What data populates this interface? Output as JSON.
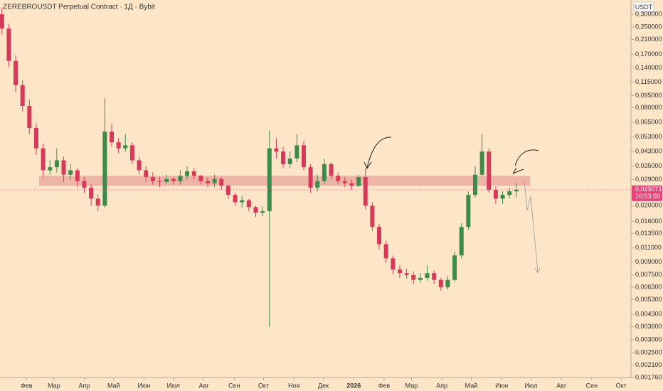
{
  "chart_data": {
    "type": "candlestick",
    "title": "ZEREBROUSDT Perpetual Contract · 1Д · Bybit",
    "y_unit": "USDT",
    "x": [
      -25,
      -18,
      -11,
      -4,
      3,
      10,
      17,
      24,
      31,
      38,
      45,
      52,
      59,
      66,
      73,
      80,
      87,
      94,
      101,
      108,
      115,
      122,
      129,
      136,
      143,
      150,
      157,
      164,
      171,
      178,
      185,
      192,
      199,
      206,
      213,
      220,
      227,
      234,
      241,
      248,
      255,
      262,
      269,
      276,
      283,
      290,
      297,
      304,
      311,
      318,
      325,
      332,
      339,
      346,
      353,
      360,
      367,
      374,
      381,
      388,
      395,
      402,
      409,
      416,
      423,
      430,
      437,
      444,
      451,
      458,
      465,
      472,
      479,
      486,
      493,
      500
    ],
    "open": [
      0.3,
      0.245,
      0.155,
      0.11,
      0.082,
      0.06,
      0.045,
      0.033,
      0.0345,
      0.038,
      0.031,
      0.033,
      0.0283,
      0.0258,
      0.0221,
      0.02,
      0.057,
      0.049,
      0.045,
      0.047,
      0.038,
      0.033,
      0.03,
      0.0283,
      0.028,
      0.0292,
      0.0283,
      0.0305,
      0.0325,
      0.0305,
      0.0283,
      0.0275,
      0.0292,
      0.0265,
      0.0233,
      0.021,
      0.0216,
      0.0196,
      0.0181,
      0.0185,
      0.045,
      0.043,
      0.036,
      0.039,
      0.047,
      0.0345,
      0.0258,
      0.0283,
      0.036,
      0.0305,
      0.0283,
      0.0275,
      0.0265,
      0.03,
      0.02,
      0.0148,
      0.0116,
      0.0095,
      0.0081,
      0.0077,
      0.0075,
      0.007,
      0.0072,
      0.0077,
      0.007,
      0.0063,
      0.007,
      0.0099,
      0.0148,
      0.0233,
      0.031,
      0.043,
      0.025,
      0.0221,
      0.0233,
      0.0245
    ],
    "high": [
      0.33,
      0.262,
      0.168,
      0.118,
      0.09,
      0.064,
      0.048,
      0.038,
      0.045,
      0.04,
      0.036,
      0.034,
      0.03,
      0.027,
      0.0235,
      0.092,
      0.064,
      0.052,
      0.055,
      0.049,
      0.04,
      0.035,
      0.032,
      0.03,
      0.031,
      0.03,
      0.033,
      0.035,
      0.034,
      0.031,
      0.03,
      0.031,
      0.03,
      0.027,
      0.024,
      0.023,
      0.022,
      0.02,
      0.0198,
      0.058,
      0.052,
      0.046,
      0.043,
      0.055,
      0.05,
      0.036,
      0.031,
      0.039,
      0.037,
      0.032,
      0.03,
      0.029,
      0.031,
      0.034,
      0.021,
      0.0155,
      0.0122,
      0.0099,
      0.0086,
      0.0082,
      0.0079,
      0.0077,
      0.0086,
      0.008,
      0.0072,
      0.0074,
      0.0104,
      0.0156,
      0.0245,
      0.035,
      0.055,
      0.045,
      0.0262,
      0.0245,
      0.0258,
      0.0275
    ],
    "low": [
      0.225,
      0.142,
      0.1,
      0.076,
      0.055,
      0.041,
      0.03,
      0.031,
      0.032,
      0.028,
      0.029,
      0.026,
      0.024,
      0.02,
      0.0185,
      0.0195,
      0.046,
      0.042,
      0.043,
      0.036,
      0.031,
      0.028,
      0.027,
      0.026,
      0.027,
      0.027,
      0.027,
      0.029,
      0.029,
      0.027,
      0.026,
      0.026,
      0.025,
      0.022,
      0.02,
      0.0195,
      0.0185,
      0.017,
      0.0172,
      0.0036,
      0.039,
      0.034,
      0.034,
      0.037,
      0.033,
      0.024,
      0.0245,
      0.027,
      0.029,
      0.027,
      0.026,
      0.025,
      0.026,
      0.019,
      0.014,
      0.0108,
      0.0089,
      0.0076,
      0.0072,
      0.0071,
      0.0066,
      0.0067,
      0.0069,
      0.0066,
      0.006,
      0.0061,
      0.0068,
      0.0095,
      0.0142,
      0.0225,
      0.03,
      0.024,
      0.0205,
      0.0205,
      0.0222,
      0.0225
    ],
    "close": [
      0.245,
      0.155,
      0.11,
      0.082,
      0.06,
      0.045,
      0.033,
      0.0345,
      0.038,
      0.031,
      0.033,
      0.0283,
      0.0258,
      0.0221,
      0.02,
      0.057,
      0.049,
      0.045,
      0.047,
      0.038,
      0.033,
      0.03,
      0.0283,
      0.028,
      0.0292,
      0.0283,
      0.0305,
      0.0325,
      0.0305,
      0.0283,
      0.0275,
      0.0292,
      0.0265,
      0.0233,
      0.021,
      0.0216,
      0.0196,
      0.0181,
      0.0185,
      0.045,
      0.043,
      0.036,
      0.039,
      0.047,
      0.0345,
      0.0258,
      0.0283,
      0.036,
      0.0305,
      0.0283,
      0.0275,
      0.0265,
      0.03,
      0.02,
      0.0148,
      0.0116,
      0.0095,
      0.0081,
      0.0077,
      0.0075,
      0.007,
      0.0072,
      0.0077,
      0.007,
      0.0063,
      0.007,
      0.0099,
      0.0148,
      0.0233,
      0.031,
      0.043,
      0.025,
      0.0221,
      0.0233,
      0.0245,
      0.025071
    ],
    "up_color": "#3d8b4a",
    "down_color": "#d63a5a",
    "xlim": [
      -27,
      617
    ],
    "xticks": [
      {
        "value": 0,
        "label": "Фев"
      },
      {
        "value": 28,
        "label": "Мар"
      },
      {
        "value": 59,
        "label": "Апр"
      },
      {
        "value": 89,
        "label": "Май"
      },
      {
        "value": 120,
        "label": "Июн"
      },
      {
        "value": 150,
        "label": "Июл"
      },
      {
        "value": 181,
        "label": "Авг"
      },
      {
        "value": 212,
        "label": "Сен"
      },
      {
        "value": 242,
        "label": "Окт"
      },
      {
        "value": 273,
        "label": "Ноя"
      },
      {
        "value": 303,
        "label": "Дек"
      },
      {
        "value": 334,
        "label": "2026"
      },
      {
        "value": 365,
        "label": "Фев"
      },
      {
        "value": 393,
        "label": "Мар"
      },
      {
        "value": 424,
        "label": "Апр"
      },
      {
        "value": 454,
        "label": "Май"
      },
      {
        "value": 485,
        "label": "Июн"
      },
      {
        "value": 515,
        "label": "Июл"
      },
      {
        "value": 546,
        "label": "Авг"
      },
      {
        "value": 577,
        "label": "Сен"
      },
      {
        "value": 607,
        "label": "Окт"
      }
    ],
    "ylim": [
      0.00176,
      0.367
    ],
    "log_y": true,
    "yticks": [
      {
        "value": 0.3,
        "label": "0,300000"
      },
      {
        "value": 0.25,
        "label": "0,250000"
      },
      {
        "value": 0.21,
        "label": "0,210000"
      },
      {
        "value": 0.17,
        "label": "0,170000"
      },
      {
        "value": 0.14,
        "label": "0,140000"
      },
      {
        "value": 0.115,
        "label": "0,115000"
      },
      {
        "value": 0.095,
        "label": "0,095000"
      },
      {
        "value": 0.08,
        "label": "0,080000"
      },
      {
        "value": 0.065,
        "label": "0,065000"
      },
      {
        "value": 0.053,
        "label": "0,053000"
      },
      {
        "value": 0.043,
        "label": "0,043000"
      },
      {
        "value": 0.035,
        "label": "0,035000"
      },
      {
        "value": 0.029,
        "label": "0,029000"
      },
      {
        "value": 0.02,
        "label": "0,020000"
      },
      {
        "value": 0.016,
        "label": "0,016000"
      },
      {
        "value": 0.0135,
        "label": "0,013500"
      },
      {
        "value": 0.011,
        "label": "0,011000"
      },
      {
        "value": 0.009,
        "label": "0,009000"
      },
      {
        "value": 0.0075,
        "label": "0,007500"
      },
      {
        "value": 0.0063,
        "label": "0,006300"
      },
      {
        "value": 0.0053,
        "label": "0,005300"
      },
      {
        "value": 0.0043,
        "label": "0,004300"
      },
      {
        "value": 0.0036,
        "label": "0,003600"
      },
      {
        "value": 0.003,
        "label": "0,003000"
      },
      {
        "value": 0.0025,
        "label": "0,002500"
      },
      {
        "value": 0.0021,
        "label": "0,002100"
      },
      {
        "value": 0.00176,
        "label": "0,001760"
      }
    ],
    "last_price": {
      "value": 0.025071,
      "label": "0,025071",
      "countdown": "10:53:50",
      "color": "#e8447a"
    },
    "zone": {
      "low": 0.0265,
      "high": 0.0305,
      "color": "#e8a39a"
    }
  }
}
